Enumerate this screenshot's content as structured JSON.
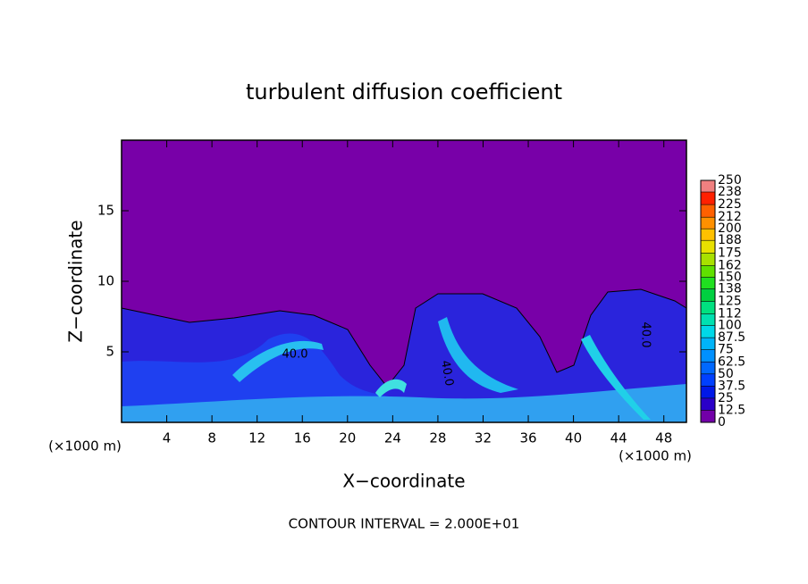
{
  "chart_data": {
    "type": "contour",
    "title": "turbulent diffusion coefficient",
    "x_label": "X−coordinate",
    "y_label": "Z−coordinate",
    "x_unit": "(×1000 m)",
    "footer": "CONTOUR INTERVAL = 2.000E+01",
    "annotations": [
      "40.0",
      "40.0",
      "40.0"
    ],
    "xlim": [
      0,
      50
    ],
    "ylim": [
      0,
      20
    ],
    "xticks": [
      4,
      8,
      12,
      16,
      20,
      24,
      28,
      32,
      36,
      40,
      44,
      48
    ],
    "yticks": [
      5,
      10,
      15
    ],
    "colorbar": {
      "levels": [
        0,
        12.5,
        25,
        37.5,
        50,
        62.5,
        75,
        87.5,
        100,
        112,
        125,
        138,
        150,
        162,
        175,
        188,
        200,
        212,
        225,
        238,
        250
      ],
      "colors": [
        "#7200a8",
        "#2a00c8",
        "#0018e8",
        "#0040ff",
        "#0068ff",
        "#0090ff",
        "#00b4f8",
        "#00d8e8",
        "#00e0b0",
        "#00e080",
        "#00d040",
        "#20e020",
        "#60e000",
        "#a8e000",
        "#e8e000",
        "#ffc000",
        "#ff9000",
        "#ff6000",
        "#ff2000",
        "#f08080"
      ]
    }
  }
}
